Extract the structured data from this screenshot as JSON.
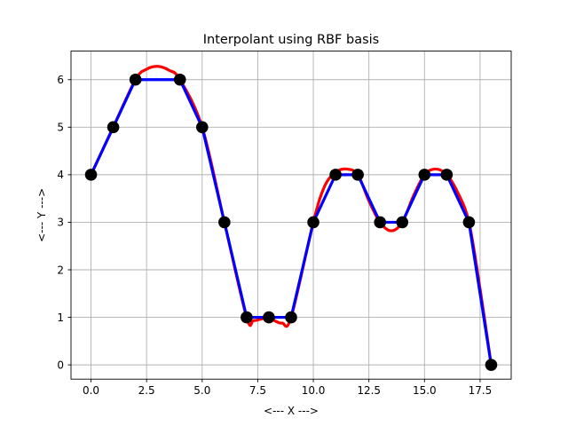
{
  "chart_data": {
    "type": "line",
    "title": "Interpolant using RBF basis",
    "xlabel": "<--- X --->",
    "ylabel": "<--- Y --->",
    "xlim": [
      -0.9,
      18.9
    ],
    "ylim": [
      -0.3,
      6.6
    ],
    "xticks": [
      0.0,
      2.5,
      5.0,
      7.5,
      10.0,
      12.5,
      15.0,
      17.5
    ],
    "xtick_labels": [
      "0.0",
      "2.5",
      "5.0",
      "7.5",
      "10.0",
      "12.5",
      "15.0",
      "17.5"
    ],
    "yticks": [
      0,
      1,
      2,
      3,
      4,
      5,
      6
    ],
    "ytick_labels": [
      "0",
      "1",
      "2",
      "3",
      "4",
      "5",
      "6"
    ],
    "grid": true,
    "series": [
      {
        "role": "rbf-interpolant",
        "style": "smooth-line",
        "color": "#ff0000",
        "x": [
          0,
          1,
          2,
          2.5,
          3,
          3.5,
          4,
          5,
          6,
          7,
          7.3,
          7.7,
          8,
          8.3,
          8.6,
          9,
          10,
          10.5,
          11,
          11.5,
          12,
          12.5,
          13,
          13.5,
          14,
          14.5,
          15,
          15.5,
          16,
          16.5,
          17,
          17.5,
          18
        ],
        "y": [
          4,
          5,
          6,
          6.22,
          6.28,
          6.2,
          6,
          5,
          3,
          1,
          0.93,
          0.97,
          1,
          0.92,
          0.88,
          1,
          3,
          3.75,
          4.05,
          4.12,
          4,
          3.45,
          3,
          2.82,
          3,
          3.55,
          4,
          4.12,
          4,
          3.62,
          3,
          1.6,
          0
        ]
      },
      {
        "role": "linear-interpolant",
        "style": "straight-line",
        "color": "#0000ff",
        "x": [
          0,
          1,
          2,
          4,
          5,
          6,
          7,
          8,
          9,
          10,
          11,
          12,
          13,
          14,
          15,
          16,
          17,
          18
        ],
        "y": [
          4,
          5,
          6,
          6,
          5,
          3,
          1,
          1,
          1,
          3,
          4,
          4,
          3,
          3,
          4,
          4,
          3,
          0
        ]
      }
    ],
    "points": {
      "color": "#000000",
      "x": [
        0,
        1,
        2,
        4,
        5,
        6,
        7,
        8,
        9,
        10,
        11,
        12,
        13,
        14,
        15,
        16,
        17,
        18
      ],
      "y": [
        4,
        5,
        6,
        6,
        5,
        3,
        1,
        1,
        1,
        3,
        4,
        4,
        3,
        3,
        4,
        4,
        3,
        0
      ]
    }
  }
}
